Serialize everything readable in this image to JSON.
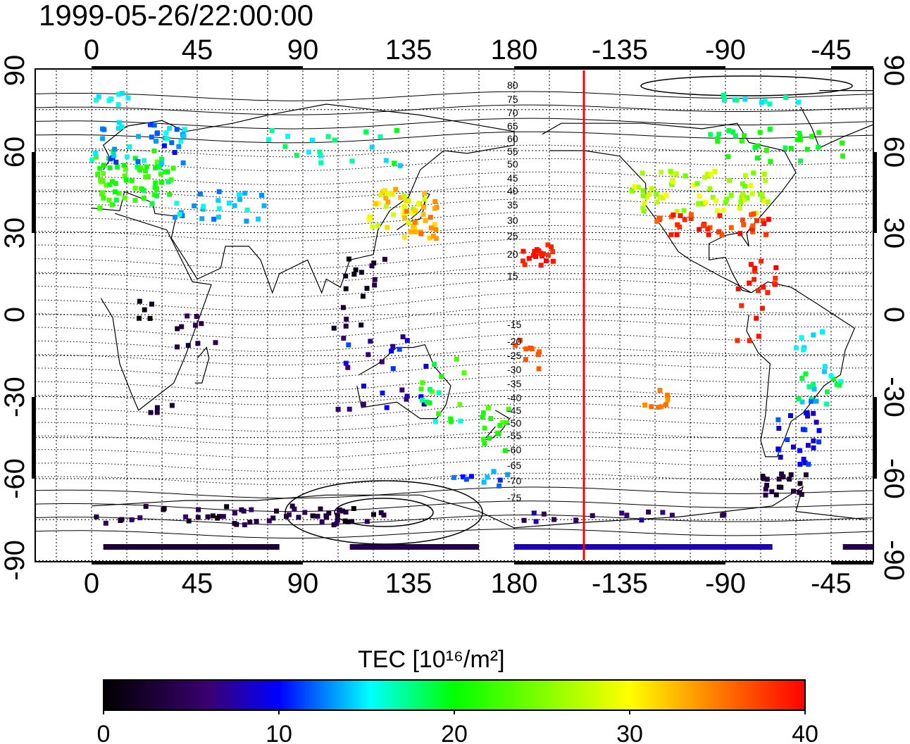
{
  "title": "1999-05-26/22:00:00",
  "map": {
    "lon_ticks_top": [
      "0",
      "45",
      "90",
      "135",
      "180",
      "-135",
      "-90",
      "-45"
    ],
    "lon_ticks_bottom": [
      "0",
      "45",
      "90",
      "135",
      "180",
      "-135",
      "-90",
      "-45"
    ],
    "lat_ticks_left": [
      "90",
      "60",
      "30",
      "0",
      "-30",
      "-60",
      "-90"
    ],
    "lat_ticks_right": [
      "90",
      "60",
      "30",
      "0",
      "-30",
      "-60",
      "-90"
    ],
    "terminator_color": "#ff0000",
    "contour_labels_north": [
      "80",
      "75",
      "70",
      "65",
      "60",
      "55",
      "50",
      "45",
      "40",
      "35",
      "30",
      "25",
      "20",
      "15"
    ],
    "contour_labels_south": [
      "-15",
      "-20",
      "-25",
      "-30",
      "-35",
      "-40",
      "-45",
      "-50",
      "-55",
      "-60",
      "-65",
      "-70",
      "-75"
    ]
  },
  "colorbar": {
    "label": "TEC  [10¹⁶/m²]",
    "tick_labels": [
      "0",
      "10",
      "20",
      "30",
      "40"
    ],
    "range": [
      0,
      40
    ],
    "colors": [
      "#000000",
      "#400080",
      "#0000ff",
      "#00ffff",
      "#00ff00",
      "#ffff00",
      "#ff8000",
      "#ff0000"
    ]
  }
}
